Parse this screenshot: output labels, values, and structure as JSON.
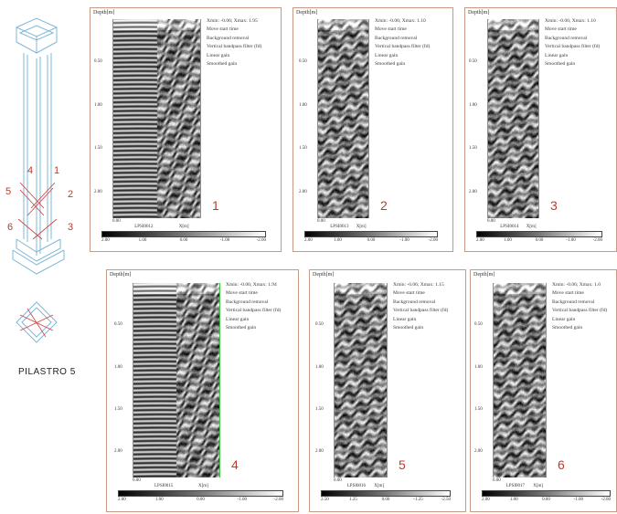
{
  "pillar": {
    "title": "PILASTRO 5",
    "labels": [
      "4",
      "1",
      "5",
      "2",
      "6",
      "3"
    ]
  },
  "colors": {
    "panel_border": "#c89a86",
    "trace_edge": "#46c24a",
    "label_red": "#c0392b",
    "sketch_line": "#7fb8d6"
  },
  "panels": [
    {
      "id": "1",
      "ylabel": "Depth[m]",
      "yticks": [
        "0.50",
        "1.00",
        "1.50",
        "2.00"
      ],
      "info": [
        "Xmin:  -0.06;  Xmax:     1.95",
        "Move start time",
        "Background removal",
        "Vertical bandpass filter (fd)",
        "Linear gain",
        "Smoothed gain"
      ],
      "x0": "0.00",
      "file": "LPSI0012",
      "xunit": "X[m]",
      "colorbar": [
        "2.00",
        "1.00",
        "0.00",
        "-1.00",
        "-2.00"
      ],
      "number": "1"
    },
    {
      "id": "2",
      "ylabel": "Depth[m]",
      "yticks": [
        "0.50",
        "1.00",
        "1.50",
        "2.00"
      ],
      "info": [
        "Xmin:  -0.06;  Xmax:     1.10",
        "Move start time",
        "Background removal",
        "Vertical bandpass filter (fd)",
        "Linear gain",
        "Smoothed gain"
      ],
      "x0": "0.00",
      "file": "LPSI0013",
      "xunit": "X[m]",
      "colorbar": [
        "2.00",
        "1.00",
        "0.00",
        "-1.00",
        "-2.00"
      ],
      "number": "2"
    },
    {
      "id": "3",
      "ylabel": "Depth[m]",
      "yticks": [
        "0.50",
        "1.00",
        "1.50",
        "2.00"
      ],
      "info": [
        "Xmin:  -0.06;  Xmax:     1.10",
        "Move start time",
        "Background removal",
        "Vertical bandpass filter (fd)",
        "Linear gain",
        "Smoothed gain"
      ],
      "x0": "0.00",
      "file": "LPSI0014",
      "xunit": "X[m]",
      "colorbar": [
        "2.00",
        "1.00",
        "0.00",
        "-1.00",
        "-2.00"
      ],
      "number": "3"
    },
    {
      "id": "4",
      "ylabel": "Depth[m]",
      "yticks": [
        "0.50",
        "1.00",
        "1.50",
        "2.00"
      ],
      "info": [
        "Xmin:  -0.06;  Xmax:     1.94",
        "Move start time",
        "Background removal",
        "Vertical bandpass filter (fd)",
        "Linear gain",
        "Smoothed gain"
      ],
      "x0": "0.00",
      "file": "LPSI0015",
      "xunit": "X[m]",
      "colorbar": [
        "2.00",
        "1.00",
        "0.00",
        "-1.00",
        "-2.00"
      ],
      "number": "4"
    },
    {
      "id": "5",
      "ylabel": "Depth[m]",
      "yticks": [
        "0.50",
        "1.00",
        "1.50",
        "2.00"
      ],
      "info": [
        "Xmin:  -0.06;  Xmax:     1.15",
        "Move start time",
        "Background removal",
        "Vertical bandpass filter (fd)",
        "Linear gain",
        "Smoothed gain"
      ],
      "x0": "0.00",
      "file": "LPSI0016",
      "xunit": "X[m]",
      "colorbar": [
        "2.50",
        "1.25",
        "0.00",
        "-1.25",
        "-2.50"
      ],
      "number": "5"
    },
    {
      "id": "6",
      "ylabel": "Depth[m]",
      "yticks": [
        "0.50",
        "1.00",
        "1.50",
        "2.00"
      ],
      "info": [
        "Xmin:  -0.06;  Xmax:     1.0",
        "Move start time",
        "Background removal",
        "Vertical bandpass filter (fd)",
        "Linear gain",
        "Smoothed gain"
      ],
      "x0": "0.00",
      "file": "LPSI0017",
      "xunit": "X[m]",
      "colorbar": [
        "2.00",
        "1.00",
        "0.00",
        "-1.00",
        "-2.00"
      ],
      "number": "6"
    }
  ]
}
